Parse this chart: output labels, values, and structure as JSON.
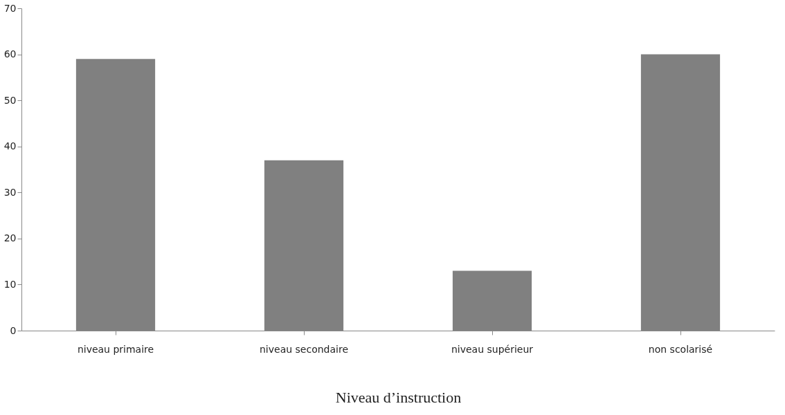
{
  "chart_data": {
    "type": "bar",
    "xlabel": "Niveau d’instruction",
    "categories": [
      "niveau primaire",
      "niveau secondaire",
      "niveau supérieur",
      "non scolarisé"
    ],
    "values": [
      59,
      37,
      13,
      60
    ],
    "color": "#808080",
    "ylim": [
      0,
      70
    ],
    "yticks": [
      0,
      10,
      20,
      30,
      40,
      50,
      60,
      70
    ],
    "grid": false
  }
}
